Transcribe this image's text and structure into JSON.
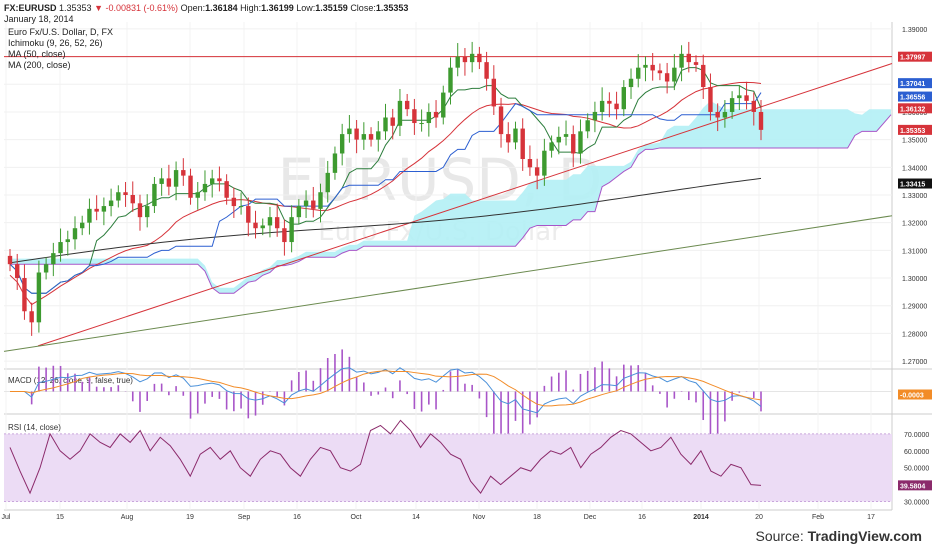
{
  "header": {
    "symbol": "FX:EURUSD",
    "last": "1.35353",
    "change": "▼ -0.00831 (-0.61%)",
    "open_label": "Open:",
    "open": "1.36184",
    "high_label": "High:",
    "high": "1.36199",
    "low_label": "Low:",
    "low": "1.35159",
    "close_label": "Close:",
    "close": "1.35353",
    "date": "January 18, 2014"
  },
  "legend": {
    "title": "Euro Fx/U.S. Dollar, D, FX",
    "ichimoku": "Ichimoku (9, 26, 52, 26)",
    "ma50": "MA (50, close)",
    "ma200": "MA (200, close)"
  },
  "watermark": {
    "symbol": "EURUSD, D",
    "name": "Euro Fx/U.S. Dollar"
  },
  "source": {
    "prefix": "Source:",
    "brand": "TradingView.com"
  },
  "colors": {
    "up": "#3d9a2f",
    "down": "#d6333a",
    "tenkan": "#2c7d3c",
    "kijun": "#2c5fd1",
    "ma50": "#d6333a",
    "ma200": "#333333",
    "cloud": "#b3f0f5",
    "spanB": "#a855c8",
    "support": "#d6333a",
    "trend": "#6b8a4f",
    "macd": "#4a90d9",
    "signal": "#f28c28",
    "rsi": "#8b2a6b",
    "rsi_bg": "#ecdcf5"
  },
  "chart_data": [
    {
      "type": "candlestick",
      "title": "Euro Fx/U.S. Dollar, D, FX",
      "ylim": [
        1.2675,
        1.3925
      ],
      "y_ticks": [
        1.27,
        1.28,
        1.29,
        1.3,
        1.31,
        1.32,
        1.33,
        1.34,
        1.35,
        1.36,
        1.37,
        1.38,
        1.39
      ],
      "x_ticks": [
        "Jul",
        "15",
        "Aug",
        "19",
        "Sep",
        "16",
        "Oct",
        "14",
        "Nov",
        "18",
        "Dec",
        "16",
        "2014",
        "20",
        "Feb",
        "17"
      ],
      "price_labels": [
        {
          "value": 1.37997,
          "text": "1.37997",
          "color": "#d6333a"
        },
        {
          "value": 1.37041,
          "text": "1.37041",
          "color": "#2c5fd1"
        },
        {
          "value": 1.36556,
          "text": "1.36556",
          "color": "#2c5fd1"
        },
        {
          "value": 1.36132,
          "text": "1.36132",
          "color": "#d6333a"
        },
        {
          "value": 1.35353,
          "text": "1.35353",
          "color": "#d6333a"
        },
        {
          "value": 1.33415,
          "text": "1.33415",
          "color": "#111111"
        }
      ],
      "close_path": [
        1.305,
        1.3,
        1.288,
        1.284,
        1.302,
        1.305,
        1.309,
        1.313,
        1.314,
        1.318,
        1.32,
        1.325,
        1.324,
        1.326,
        1.328,
        1.331,
        1.33,
        1.327,
        1.322,
        1.326,
        1.334,
        1.336,
        1.333,
        1.339,
        1.337,
        1.329,
        1.331,
        1.334,
        1.336,
        1.335,
        1.329,
        1.326,
        1.326,
        1.32,
        1.318,
        1.319,
        1.322,
        1.318,
        1.313,
        1.322,
        1.326,
        1.328,
        1.325,
        1.331,
        1.338,
        1.345,
        1.352,
        1.354,
        1.35,
        1.352,
        1.35,
        1.353,
        1.358,
        1.355,
        1.364,
        1.361,
        1.356,
        1.356,
        1.36,
        1.358,
        1.367,
        1.376,
        1.38,
        1.378,
        1.381,
        1.378,
        1.372,
        1.362,
        1.352,
        1.349,
        1.354,
        1.343,
        1.34,
        1.337,
        1.346,
        1.349,
        1.351,
        1.352,
        1.345,
        1.353,
        1.357,
        1.36,
        1.364,
        1.363,
        1.361,
        1.369,
        1.372,
        1.376,
        1.377,
        1.375,
        1.374,
        1.371,
        1.376,
        1.381,
        1.378,
        1.377,
        1.369,
        1.36,
        1.358,
        1.36,
        1.365,
        1.366,
        1.364,
        1.36,
        1.35353
      ],
      "horizontal_line": 1.37997
    },
    {
      "type": "line",
      "title": "MACD (12, 26, close, 9, false, true)",
      "value_label": "-0.0003",
      "ylim": [
        -0.012,
        0.012
      ]
    },
    {
      "type": "line",
      "title": "RSI (14, close)",
      "ylim": [
        25,
        80
      ],
      "y_ticks": [
        30,
        40,
        50,
        60,
        70
      ],
      "band": [
        30,
        70
      ],
      "value_label": "39.5804",
      "values": [
        62,
        48,
        35,
        50,
        70,
        60,
        55,
        60,
        70,
        65,
        62,
        70,
        65,
        72,
        60,
        68,
        63,
        55,
        45,
        58,
        62,
        55,
        60,
        50,
        45,
        55,
        60,
        58,
        50,
        45,
        55,
        62,
        60,
        50,
        48,
        52,
        72,
        75,
        70,
        78,
        72,
        62,
        70,
        65,
        58,
        55,
        42,
        35,
        45,
        40,
        45,
        50,
        48,
        55,
        60,
        58,
        62,
        50,
        58,
        62,
        68,
        72,
        70,
        65,
        60,
        62,
        68,
        58,
        52,
        60,
        48,
        45,
        52,
        50,
        40,
        39.58
      ]
    }
  ]
}
